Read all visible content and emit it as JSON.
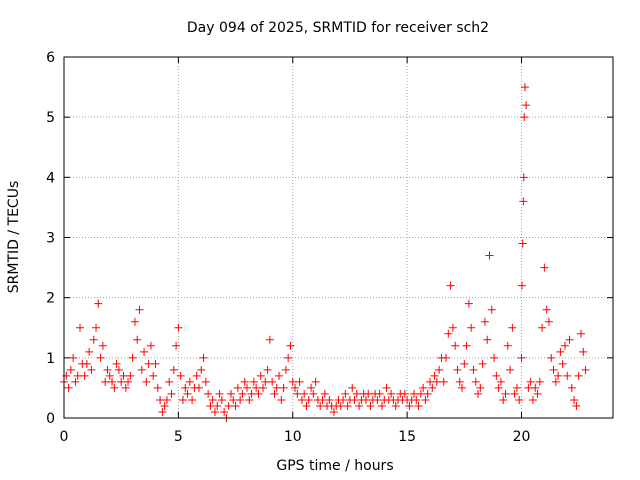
{
  "chart_data": {
    "type": "scatter",
    "title": "Day 094 of 2025, SRMTID for receiver sch2",
    "xlabel": "GPS time / hours",
    "ylabel": "SRMTID / TECUs",
    "xlim": [
      0,
      24
    ],
    "ylim": [
      0,
      6
    ],
    "xticks": [
      0,
      5,
      10,
      15,
      20
    ],
    "xtick_labels": [
      "0",
      "5",
      "10",
      "15",
      "20"
    ],
    "yticks": [
      0,
      1,
      2,
      3,
      4,
      5,
      6
    ],
    "ytick_labels": [
      "0",
      "1",
      "2",
      "3",
      "4",
      "5",
      "6"
    ],
    "grid": true,
    "marker": "+",
    "color": "#ff0000",
    "series": [
      {
        "name": "sch2",
        "x": [
          0.0,
          0.1,
          0.2,
          0.3,
          0.4,
          0.5,
          0.6,
          0.7,
          0.8,
          0.9,
          1.0,
          1.1,
          1.2,
          1.3,
          1.4,
          1.5,
          1.6,
          1.7,
          1.8,
          1.9,
          2.0,
          2.1,
          2.2,
          2.3,
          2.4,
          2.5,
          2.6,
          2.7,
          2.8,
          2.9,
          3.0,
          3.1,
          3.2,
          3.3,
          3.4,
          3.5,
          3.6,
          3.7,
          3.8,
          3.9,
          4.0,
          4.1,
          4.2,
          4.3,
          4.4,
          4.5,
          4.6,
          4.7,
          4.8,
          4.9,
          5.0,
          5.1,
          5.2,
          5.3,
          5.4,
          5.5,
          5.6,
          5.7,
          5.8,
          5.9,
          6.0,
          6.1,
          6.2,
          6.3,
          6.4,
          6.5,
          6.6,
          6.7,
          6.8,
          6.9,
          7.0,
          7.1,
          7.2,
          7.3,
          7.4,
          7.5,
          7.6,
          7.7,
          7.8,
          7.9,
          8.0,
          8.1,
          8.2,
          8.3,
          8.4,
          8.5,
          8.6,
          8.7,
          8.8,
          8.9,
          9.0,
          9.1,
          9.2,
          9.3,
          9.4,
          9.5,
          9.6,
          9.7,
          9.8,
          9.9,
          10.0,
          10.1,
          10.2,
          10.3,
          10.4,
          10.5,
          10.6,
          10.7,
          10.8,
          10.9,
          11.0,
          11.1,
          11.2,
          11.3,
          11.4,
          11.5,
          11.6,
          11.7,
          11.8,
          11.9,
          12.0,
          12.1,
          12.2,
          12.3,
          12.4,
          12.5,
          12.6,
          12.7,
          12.8,
          12.9,
          13.0,
          13.1,
          13.2,
          13.3,
          13.4,
          13.5,
          13.6,
          13.7,
          13.8,
          13.9,
          14.0,
          14.1,
          14.2,
          14.3,
          14.4,
          14.5,
          14.6,
          14.7,
          14.8,
          14.9,
          15.0,
          15.1,
          15.2,
          15.3,
          15.4,
          15.5,
          15.6,
          15.7,
          15.8,
          15.9,
          16.0,
          16.1,
          16.2,
          16.3,
          16.4,
          16.5,
          16.6,
          16.7,
          16.8,
          16.9,
          17.0,
          17.1,
          17.2,
          17.3,
          17.4,
          17.5,
          17.6,
          17.7,
          17.8,
          17.9,
          18.0,
          18.1,
          18.2,
          18.3,
          18.4,
          18.5,
          18.6,
          18.7,
          18.8,
          18.9,
          19.0,
          19.1,
          19.2,
          19.3,
          19.4,
          19.5,
          19.6,
          19.7,
          19.8,
          19.9,
          20.0,
          20.02,
          20.05,
          20.08,
          20.1,
          20.12,
          20.15,
          20.2,
          20.3,
          20.4,
          20.5,
          20.6,
          20.7,
          20.8,
          20.9,
          21.0,
          21.1,
          21.2,
          21.3,
          21.4,
          21.5,
          21.6,
          21.7,
          21.8,
          21.9,
          22.0,
          22.1,
          22.2,
          22.3,
          22.4,
          22.5,
          22.6,
          22.7,
          22.8
        ],
        "y": [
          0.6,
          0.7,
          0.5,
          0.8,
          1.0,
          0.6,
          0.7,
          1.5,
          0.9,
          0.7,
          0.9,
          1.1,
          0.8,
          1.3,
          1.5,
          1.9,
          1.0,
          1.2,
          0.6,
          0.8,
          0.7,
          0.6,
          0.5,
          0.9,
          0.8,
          0.6,
          0.7,
          0.5,
          0.6,
          0.7,
          1.0,
          1.6,
          1.3,
          1.8,
          0.8,
          1.1,
          0.6,
          0.9,
          1.2,
          0.7,
          0.9,
          0.5,
          0.3,
          0.1,
          0.2,
          0.3,
          0.6,
          0.4,
          0.8,
          1.2,
          1.5,
          0.7,
          0.3,
          0.5,
          0.4,
          0.6,
          0.3,
          0.5,
          0.7,
          0.5,
          0.8,
          1.0,
          0.6,
          0.4,
          0.2,
          0.3,
          0.1,
          0.2,
          0.4,
          0.3,
          0.1,
          0.0,
          0.2,
          0.4,
          0.3,
          0.2,
          0.5,
          0.3,
          0.4,
          0.6,
          0.5,
          0.3,
          0.4,
          0.6,
          0.5,
          0.4,
          0.7,
          0.5,
          0.6,
          0.8,
          1.3,
          0.6,
          0.4,
          0.5,
          0.7,
          0.3,
          0.5,
          0.8,
          1.0,
          1.2,
          0.6,
          0.5,
          0.4,
          0.6,
          0.3,
          0.4,
          0.2,
          0.3,
          0.5,
          0.4,
          0.6,
          0.3,
          0.2,
          0.3,
          0.4,
          0.2,
          0.3,
          0.2,
          0.1,
          0.2,
          0.3,
          0.2,
          0.3,
          0.4,
          0.2,
          0.3,
          0.5,
          0.3,
          0.4,
          0.2,
          0.3,
          0.4,
          0.3,
          0.4,
          0.2,
          0.3,
          0.4,
          0.3,
          0.4,
          0.2,
          0.3,
          0.5,
          0.3,
          0.4,
          0.3,
          0.2,
          0.3,
          0.4,
          0.3,
          0.4,
          0.3,
          0.2,
          0.3,
          0.4,
          0.3,
          0.2,
          0.4,
          0.5,
          0.3,
          0.4,
          0.6,
          0.5,
          0.7,
          0.6,
          0.8,
          1.0,
          0.6,
          1.0,
          1.4,
          2.2,
          1.5,
          1.2,
          0.8,
          0.6,
          0.5,
          0.9,
          1.2,
          1.9,
          1.5,
          0.8,
          0.6,
          0.4,
          0.5,
          0.9,
          1.6,
          1.3,
          2.7,
          1.8,
          1.0,
          0.7,
          0.5,
          0.6,
          0.3,
          0.4,
          1.2,
          0.8,
          1.5,
          0.4,
          0.5,
          0.3,
          1.0,
          2.2,
          2.9,
          3.6,
          4.0,
          5.0,
          5.5,
          5.2,
          0.5,
          0.6,
          0.3,
          0.5,
          0.4,
          0.6,
          1.5,
          2.5,
          1.8,
          1.6,
          1.0,
          0.8,
          0.6,
          0.7,
          1.1,
          0.9,
          1.2,
          0.7,
          1.3,
          0.5,
          0.3,
          0.2,
          0.7,
          1.4,
          1.1,
          0.8
        ]
      }
    ]
  }
}
